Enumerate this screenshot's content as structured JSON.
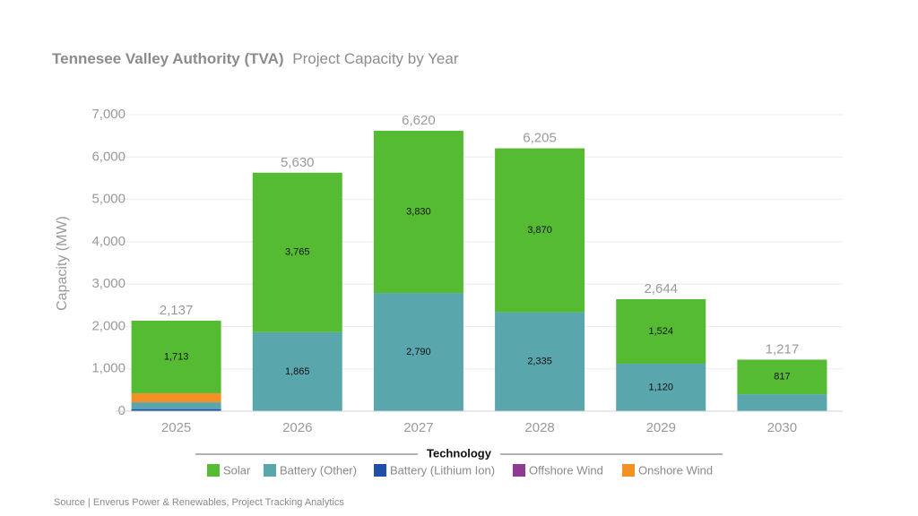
{
  "chart_data": {
    "type": "stacked_bar",
    "title": "Tennesee Valley Authority (TVA)",
    "subtitle": "Project Capacity by Year",
    "y_label": "Capacity (MW)",
    "legend_title": "Technology",
    "source": "Source | Enverus Power & Renewables, Project Tracking Analytics",
    "categories": [
      "2025",
      "2026",
      "2027",
      "2028",
      "2029",
      "2030"
    ],
    "ylim": [
      0,
      7000
    ],
    "yticks": [
      0,
      {
        "value": 1000,
        "label": "1,000"
      },
      {
        "value": 2000,
        "label": "2,000"
      },
      {
        "value": 3000,
        "label": "3,000"
      },
      {
        "value": 4000,
        "label": "4,000"
      },
      {
        "value": 5000,
        "label": "5,000"
      },
      {
        "value": 6000,
        "label": "6,000"
      },
      {
        "value": 7000,
        "label": "7,000"
      }
    ],
    "grid": true,
    "series": [
      {
        "name": "Solar",
        "color": "#55bb33",
        "values": [
          1713,
          3765,
          3830,
          3870,
          1524,
          817
        ],
        "value_labels": [
          "1,713",
          "3,765",
          "3,830",
          "3,870",
          "1,524",
          "817"
        ]
      },
      {
        "name": "Battery (Other)",
        "color": "#5aa6ad",
        "values": [
          160,
          1865,
          2790,
          2335,
          1120,
          400
        ],
        "value_labels": [
          null,
          "1,865",
          "2,790",
          "2,335",
          "1,120",
          null
        ]
      },
      {
        "name": "Battery (Lithium Ion)",
        "color": "#1f4fa8",
        "values": [
          50,
          0,
          0,
          0,
          0,
          0
        ]
      },
      {
        "name": "Offshore Wind",
        "color": "#8e3a92",
        "values": [
          0,
          0,
          0,
          0,
          0,
          0
        ]
      },
      {
        "name": "Onshore Wind",
        "color": "#f39125",
        "values": [
          214,
          0,
          0,
          0,
          0,
          0
        ]
      }
    ],
    "totals": [
      2137,
      5630,
      6620,
      6205,
      2644,
      1217
    ],
    "total_labels": [
      "2,137",
      "5,630",
      "6,620",
      "6,205",
      "2,644",
      "1,217"
    ]
  }
}
